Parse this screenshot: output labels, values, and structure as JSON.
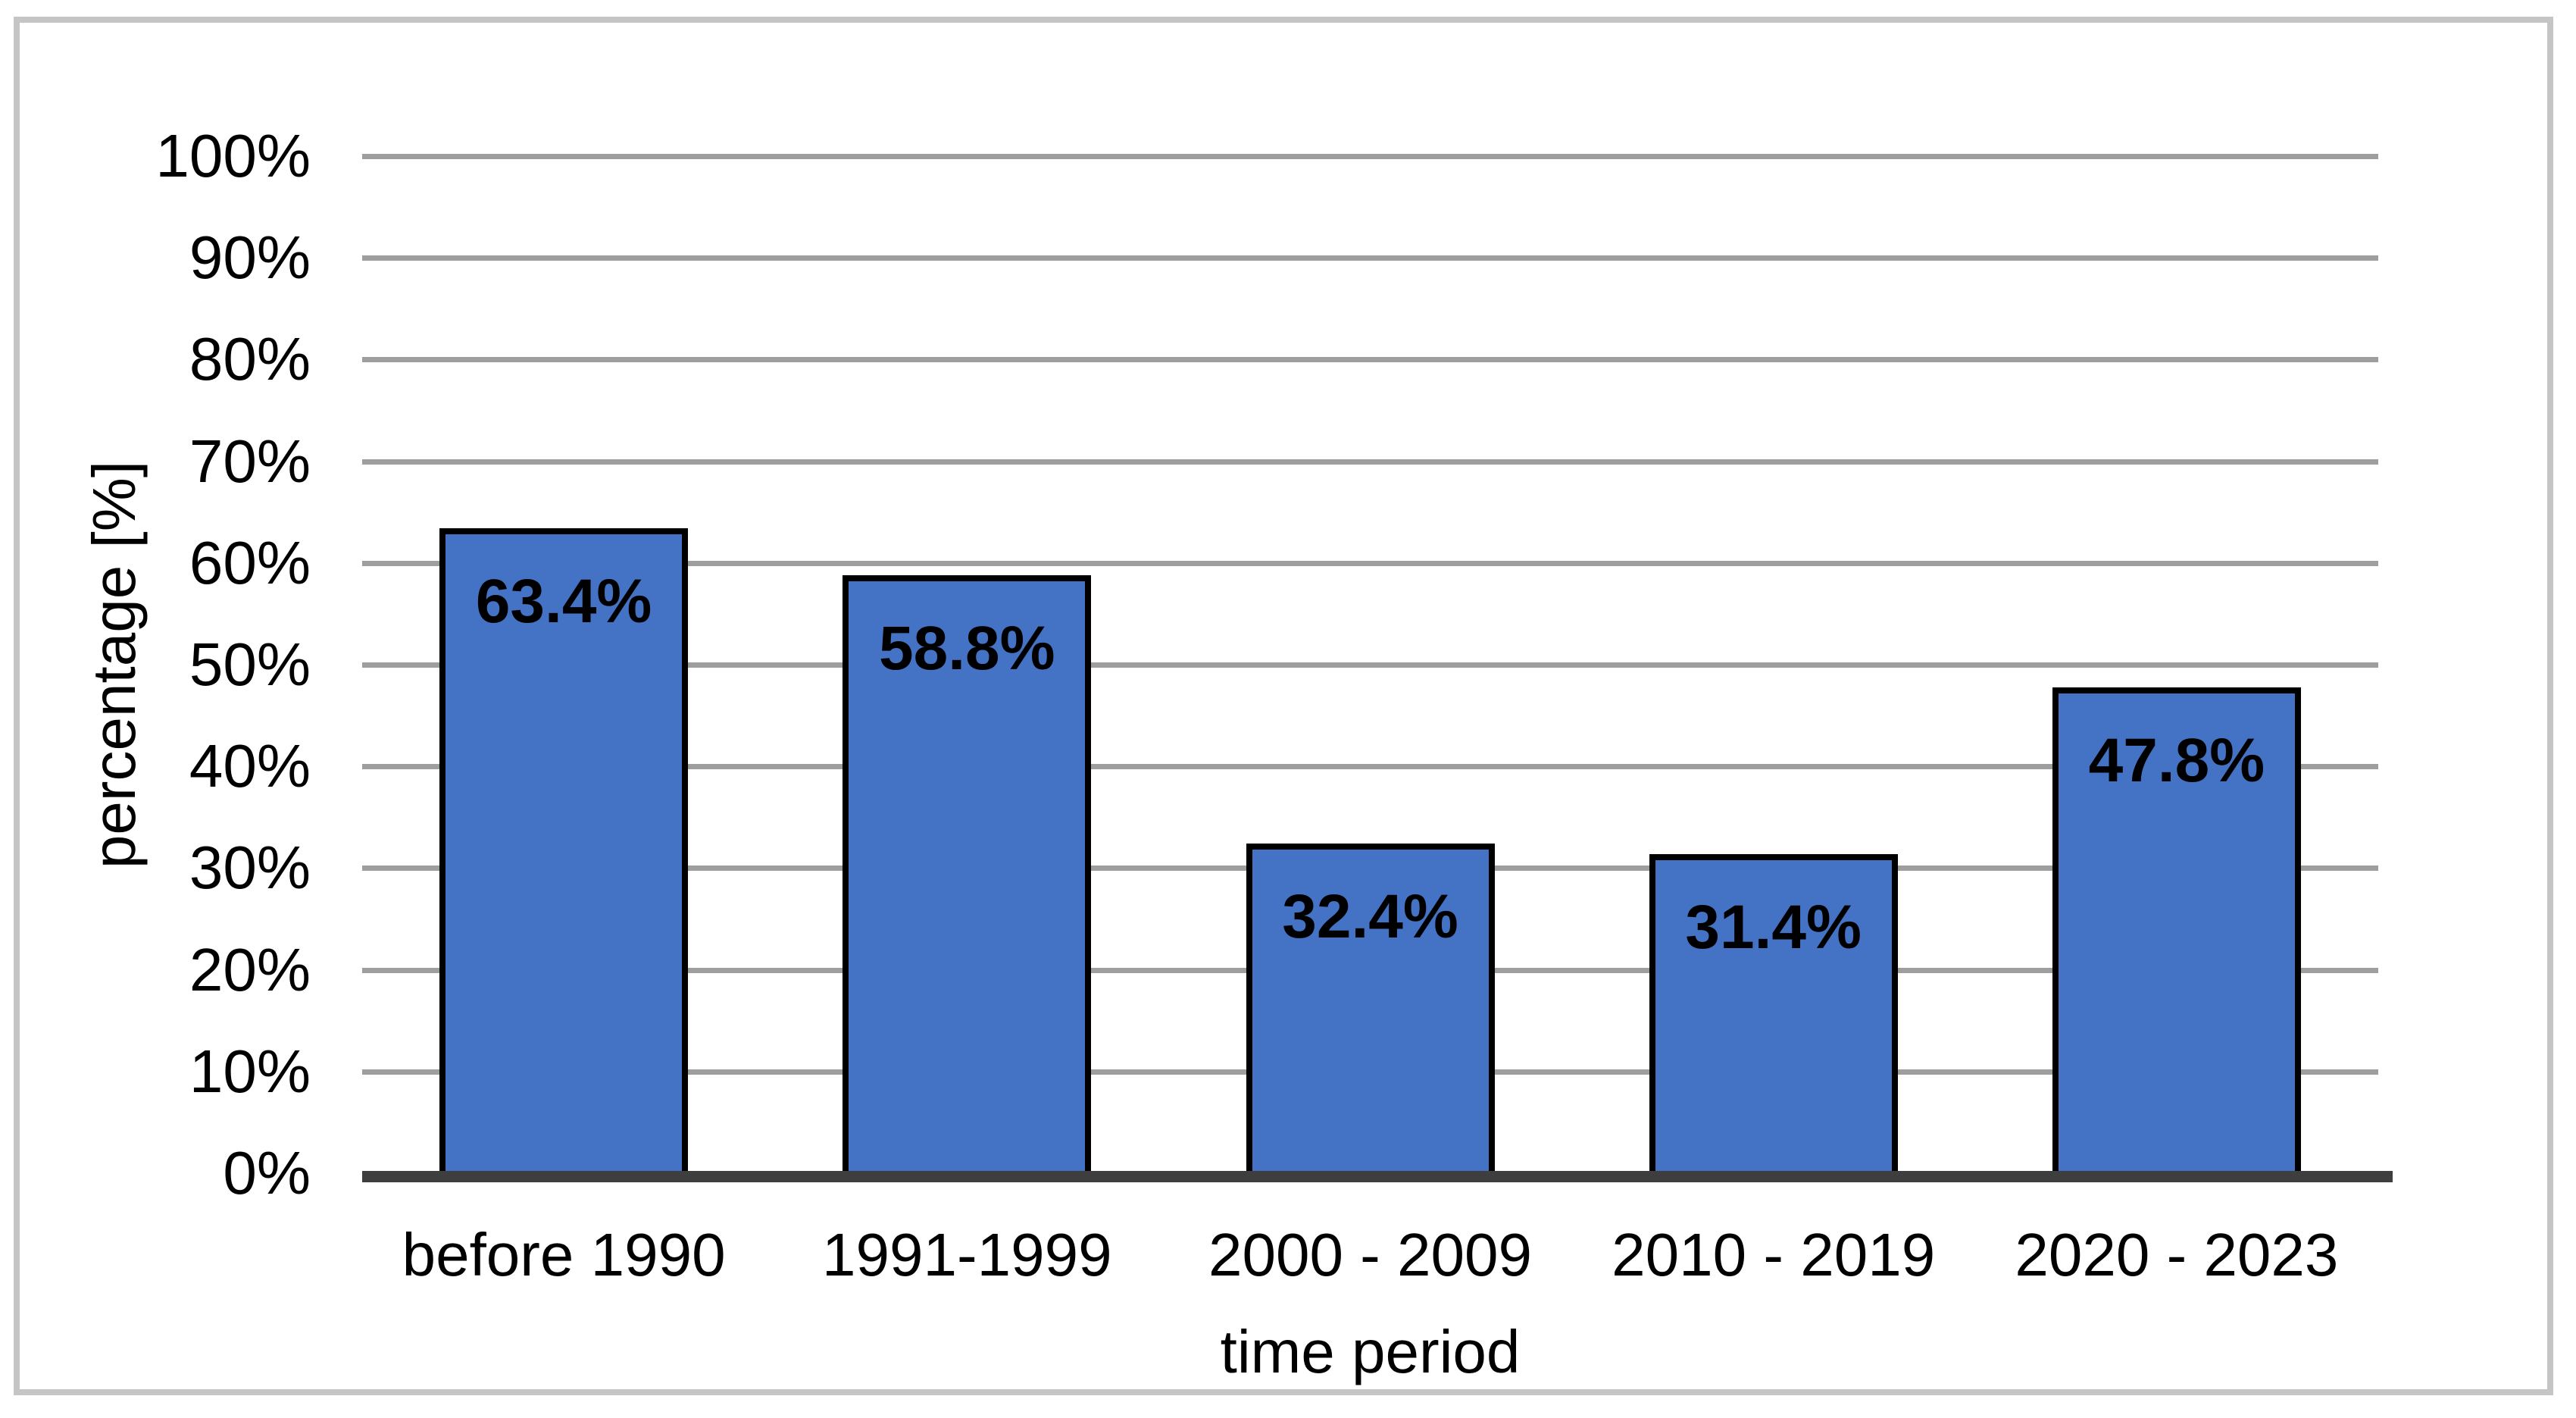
{
  "chart_data": {
    "type": "bar",
    "title": "",
    "categories": [
      "before 1990",
      "1991-1999",
      "2000 - 2009",
      "2010 - 2019",
      "2020 - 2023"
    ],
    "values": [
      63.4,
      58.8,
      32.4,
      31.4,
      47.8
    ],
    "data_labels": [
      "63.4%",
      "58.8%",
      "32.4%",
      "31.4%",
      "47.8%"
    ],
    "xlabel": "time period",
    "ylabel": "percentage [%]",
    "ylim": [
      0,
      100
    ],
    "ytick_step": 10,
    "ytick_labels": [
      "0%",
      "10%",
      "20%",
      "30%",
      "40%",
      "50%",
      "60%",
      "70%",
      "80%",
      "90%",
      "100%"
    ],
    "grid": true,
    "legend": false,
    "bar_fill_color": "#4472C4",
    "bar_border_color": "#000000",
    "gridline_color": "#9E9E9E",
    "axis_line_color": "#3E3E3E",
    "frame_border_color": "#C5C5C5",
    "label_text_color": "#000000"
  }
}
